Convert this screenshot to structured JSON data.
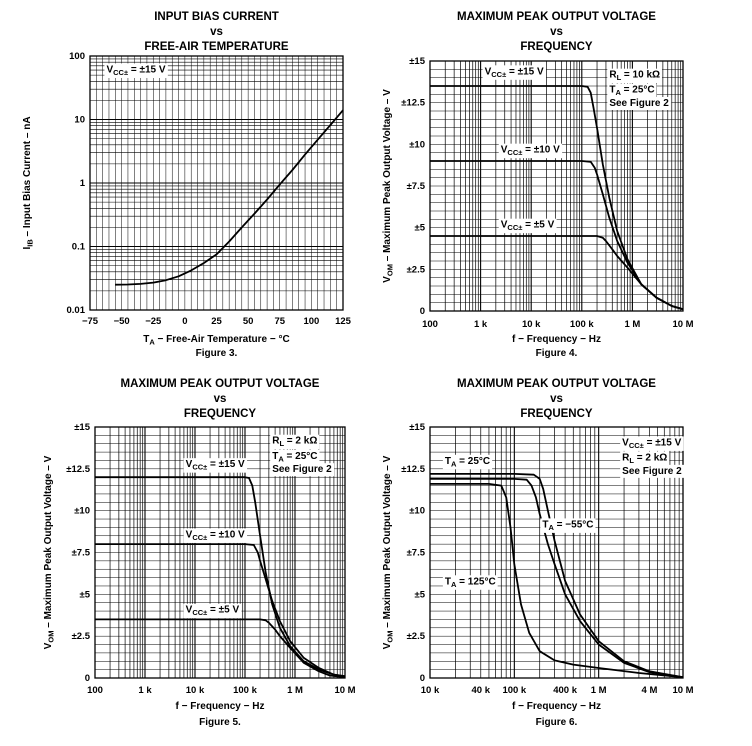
{
  "chart_data": [
    {
      "type": "line",
      "title": "INPUT BIAS CURRENT",
      "title_vs": "vs",
      "subtitle": "FREE-AIR TEMPERATURE",
      "xlabel": {
        "main": "T",
        "sub": "A",
        "rest": " − Free-Air Temperature − °C"
      },
      "ylabel": {
        "main": "I",
        "sub": "IB",
        "rest": " – Input Bias Current – nA"
      },
      "x_scale": "linear",
      "y_scale": "log",
      "xlim": [
        -75,
        125
      ],
      "ylim": [
        0.01,
        100
      ],
      "x_ticks": [
        -75,
        -50,
        -25,
        0,
        25,
        50,
        75,
        100,
        125
      ],
      "x_tick_labels": [
        "−75",
        "−50",
        "−25",
        "0",
        "25",
        "50",
        "75",
        "100",
        "125"
      ],
      "y_ticks": [
        0.01,
        0.1,
        1,
        10,
        100
      ],
      "y_tick_labels": [
        "0.01",
        "0.1",
        "1",
        "10",
        "100"
      ],
      "grid": true,
      "annotations": [
        {
          "main": "V",
          "sub": "CC±",
          "rest": " = ±15 V",
          "at": [
            -62,
            55
          ],
          "boxed": true
        }
      ],
      "series": [
        {
          "name": "V_CC± = ±15 V",
          "x": [
            -55,
            -45,
            -35,
            -25,
            -15,
            -5,
            5,
            15,
            25,
            35,
            45,
            55,
            65,
            75,
            85,
            95,
            105,
            115,
            125
          ],
          "y": [
            0.025,
            0.0252,
            0.0258,
            0.027,
            0.0295,
            0.034,
            0.042,
            0.055,
            0.075,
            0.12,
            0.2,
            0.33,
            0.55,
            0.95,
            1.6,
            2.8,
            4.8,
            8.2,
            14
          ]
        }
      ],
      "figure_label": "Figure 3."
    },
    {
      "type": "line",
      "title": "MAXIMUM PEAK OUTPUT VOLTAGE",
      "title_vs": "vs",
      "subtitle": "FREQUENCY",
      "xlabel": {
        "main": "f",
        "sub": "",
        "rest": " − Frequency − Hz"
      },
      "ylabel": {
        "main": "V",
        "sub": "OM",
        "rest": " – Maximum Peak Output Voltage – V"
      },
      "x_scale": "log",
      "y_scale": "linear",
      "xlim": [
        100,
        10000000
      ],
      "ylim": [
        0,
        15
      ],
      "x_ticks": [
        100,
        1000,
        10000,
        100000,
        1000000,
        10000000
      ],
      "x_tick_labels": [
        "100",
        "1 k",
        "10 k",
        "100 k",
        "1 M",
        "10 M"
      ],
      "y_ticks": [
        0,
        2.5,
        5,
        7.5,
        10,
        12.5,
        15
      ],
      "y_tick_labels": [
        "0",
        "±2.5",
        "±5",
        "±7.5",
        "±10",
        "±12.5",
        "±15"
      ],
      "grid": true,
      "annotations": [
        {
          "main": "V",
          "sub": "CC±",
          "rest": " = ±15 V",
          "at": [
            1200,
            14.2
          ],
          "boxed": true
        },
        {
          "main": "V",
          "sub": "CC±",
          "rest": " = ±10 V",
          "at": [
            2500,
            9.5
          ],
          "boxed": true
        },
        {
          "main": "V",
          "sub": "CC±",
          "rest": " = ±5 V",
          "at": [
            2500,
            5
          ],
          "boxed": true
        },
        {
          "main": "R",
          "sub": "L",
          "rest": " = 10 kΩ",
          "at": [
            350000,
            14
          ],
          "boxed": false
        },
        {
          "main": "T",
          "sub": "A",
          "rest": " = 25°C",
          "at": [
            350000,
            13.1
          ],
          "boxed": false
        },
        {
          "main": "",
          "sub": "",
          "rest": "See Figure 2",
          "at": [
            350000,
            12.3
          ],
          "boxed": false
        }
      ],
      "series": [
        {
          "name": "V_CC± = ±15 V",
          "x": [
            100,
            10000,
            100000,
            130000,
            150000,
            170000,
            200000,
            260000,
            350000,
            500000,
            800000,
            1500000,
            3000000,
            6000000,
            10000000
          ],
          "y": [
            13.5,
            13.5,
            13.5,
            13.45,
            13.1,
            12.2,
            11.0,
            8.8,
            6.8,
            4.8,
            3.1,
            1.6,
            0.8,
            0.3,
            0.1
          ]
        },
        {
          "name": "V_CC± = ±10 V",
          "x": [
            100,
            10000,
            100000,
            150000,
            180000,
            200000,
            260000,
            350000,
            500000,
            800000,
            1500000,
            3000000,
            6000000,
            10000000
          ],
          "y": [
            9,
            9,
            9,
            8.95,
            8.6,
            8.2,
            7.0,
            5.6,
            4.2,
            2.9,
            1.6,
            0.8,
            0.3,
            0.1
          ]
        },
        {
          "name": "V_CC± = ±5 V",
          "x": [
            100,
            10000,
            100000,
            200000,
            260000,
            300000,
            400000,
            500000,
            800000,
            1500000,
            3000000,
            6000000,
            10000000
          ],
          "y": [
            4.5,
            4.5,
            4.5,
            4.5,
            4.4,
            4.2,
            3.7,
            3.3,
            2.6,
            1.6,
            0.8,
            0.3,
            0.1
          ]
        }
      ],
      "figure_label": "Figure 4."
    },
    {
      "type": "line",
      "title": "MAXIMUM PEAK OUTPUT VOLTAGE",
      "title_vs": "vs",
      "subtitle": "FREQUENCY",
      "xlabel": {
        "main": "f",
        "sub": "",
        "rest": " − Frequency − Hz"
      },
      "ylabel": {
        "main": "V",
        "sub": "OM",
        "rest": " – Maximum Peak Output Voltage – V"
      },
      "x_scale": "log",
      "y_scale": "linear",
      "xlim": [
        100,
        10000000
      ],
      "ylim": [
        0,
        15
      ],
      "x_ticks": [
        100,
        1000,
        10000,
        100000,
        1000000,
        10000000
      ],
      "x_tick_labels": [
        "100",
        "1 k",
        "10 k",
        "100 k",
        "1 M",
        "10 M"
      ],
      "y_ticks": [
        0,
        2.5,
        5,
        7.5,
        10,
        12.5,
        15
      ],
      "y_tick_labels": [
        "0",
        "±2.5",
        "±5",
        "±7.5",
        "±10",
        "±12.5",
        "±15"
      ],
      "grid": true,
      "annotations": [
        {
          "main": "V",
          "sub": "CC±",
          "rest": " = ±15 V",
          "at": [
            6500,
            12.6
          ],
          "boxed": true
        },
        {
          "main": "V",
          "sub": "CC±",
          "rest": " = ±10 V",
          "at": [
            6500,
            8.4
          ],
          "boxed": true
        },
        {
          "main": "V",
          "sub": "CC±",
          "rest": " = ±5 V",
          "at": [
            6500,
            3.9
          ],
          "boxed": true
        },
        {
          "main": "R",
          "sub": "L",
          "rest": " = 2 kΩ",
          "at": [
            350000,
            14
          ],
          "boxed": false
        },
        {
          "main": "T",
          "sub": "A",
          "rest": " = 25°C",
          "at": [
            350000,
            13.1
          ],
          "boxed": false
        },
        {
          "main": "",
          "sub": "",
          "rest": "See Figure 2",
          "at": [
            350000,
            12.3
          ],
          "boxed": false
        }
      ],
      "series": [
        {
          "name": "V_CC± = ±15 V",
          "x": [
            100,
            10000,
            100000,
            120000,
            140000,
            160000,
            200000,
            260000,
            350000,
            500000,
            800000,
            1500000,
            3000000,
            6000000,
            10000000
          ],
          "y": [
            12,
            12,
            12,
            11.95,
            11.5,
            10.5,
            8.5,
            6.3,
            4.4,
            3.0,
            1.9,
            1.0,
            0.5,
            0.2,
            0.1
          ]
        },
        {
          "name": "V_CC± = ±10 V",
          "x": [
            100,
            10000,
            100000,
            150000,
            180000,
            200000,
            260000,
            350000,
            500000,
            800000,
            1500000,
            3000000,
            6000000,
            10000000
          ],
          "y": [
            8,
            8,
            8,
            7.95,
            7.5,
            7.0,
            5.9,
            4.6,
            3.4,
            2.2,
            1.2,
            0.6,
            0.2,
            0.1
          ]
        },
        {
          "name": "V_CC± = ±5 V",
          "x": [
            100,
            10000,
            100000,
            200000,
            260000,
            300000,
            400000,
            500000,
            800000,
            1500000,
            3000000,
            5000000,
            10000000
          ],
          "y": [
            3.5,
            3.5,
            3.5,
            3.5,
            3.45,
            3.3,
            2.9,
            2.5,
            1.8,
            0.9,
            0.4,
            0.15,
            0.05
          ]
        }
      ],
      "figure_label": "Figure 5."
    },
    {
      "type": "line",
      "title": "MAXIMUM PEAK OUTPUT VOLTAGE",
      "title_vs": "vs",
      "subtitle": "FREQUENCY",
      "xlabel": {
        "main": "f",
        "sub": "",
        "rest": " − Frequency − Hz"
      },
      "ylabel": {
        "main": "V",
        "sub": "OM",
        "rest": " – Maximum Peak Output Voltage – V"
      },
      "x_scale": "log",
      "y_scale": "linear",
      "xlim": [
        10000,
        10000000
      ],
      "ylim": [
        0,
        15
      ],
      "x_ticks": [
        10000,
        40000,
        100000,
        400000,
        1000000,
        4000000,
        10000000
      ],
      "x_tick_labels": [
        "10 k",
        "40 k",
        "100 k",
        "400 k",
        "1 M",
        "4 M",
        "10 M"
      ],
      "y_ticks": [
        0,
        2.5,
        5,
        7.5,
        10,
        12.5,
        15
      ],
      "y_tick_labels": [
        "0",
        "±2.5",
        "±5",
        "±7.5",
        "±10",
        "±12.5",
        "±15"
      ],
      "grid": true,
      "annotations": [
        {
          "main": "T",
          "sub": "A",
          "rest": " = 25°C",
          "at": [
            15000,
            12.8
          ],
          "boxed": true
        },
        {
          "main": "T",
          "sub": "A",
          "rest": " = −55°C",
          "at": [
            215000,
            9
          ],
          "boxed": true
        },
        {
          "main": "T",
          "sub": "A",
          "rest": " = 125°C",
          "at": [
            15000,
            5.6
          ],
          "boxed": true
        },
        {
          "main": "V",
          "sub": "CC±",
          "rest": " = ±15 V",
          "at": [
            1900000,
            13.9
          ],
          "boxed": false
        },
        {
          "main": "R",
          "sub": "L",
          "rest": " = 2 kΩ",
          "at": [
            1900000,
            13.0
          ],
          "boxed": false
        },
        {
          "main": "",
          "sub": "",
          "rest": "See Figure 2",
          "at": [
            1900000,
            12.2
          ],
          "boxed": false
        }
      ],
      "series": [
        {
          "name": "T_A = 25°C",
          "x": [
            10000,
            100000,
            140000,
            160000,
            180000,
            200000,
            250000,
            300000,
            400000,
            600000,
            1000000,
            2000000,
            4000000,
            10000000
          ],
          "y": [
            11.9,
            11.9,
            11.85,
            11.5,
            10.8,
            9.8,
            8.0,
            6.8,
            5.0,
            3.4,
            2.0,
            0.9,
            0.35,
            0.05
          ]
        },
        {
          "name": "T_A = −55°C",
          "x": [
            10000,
            100000,
            170000,
            200000,
            220000,
            250000,
            300000,
            400000,
            600000,
            1000000,
            2000000,
            4000000,
            10000000
          ],
          "y": [
            12.2,
            12.2,
            12.15,
            11.9,
            11.3,
            10.0,
            8.2,
            5.8,
            3.8,
            2.2,
            1.0,
            0.4,
            0.05
          ]
        },
        {
          "name": "T_A = 125°C",
          "x": [
            10000,
            50000,
            70000,
            80000,
            90000,
            100000,
            120000,
            150000,
            200000,
            300000,
            500000,
            1000000,
            3000000,
            10000000
          ],
          "y": [
            11.6,
            11.6,
            11.5,
            10.8,
            9.0,
            6.8,
            4.4,
            2.7,
            1.6,
            1.05,
            0.8,
            0.6,
            0.3,
            0.05
          ]
        }
      ],
      "figure_label": "Figure 6."
    }
  ]
}
